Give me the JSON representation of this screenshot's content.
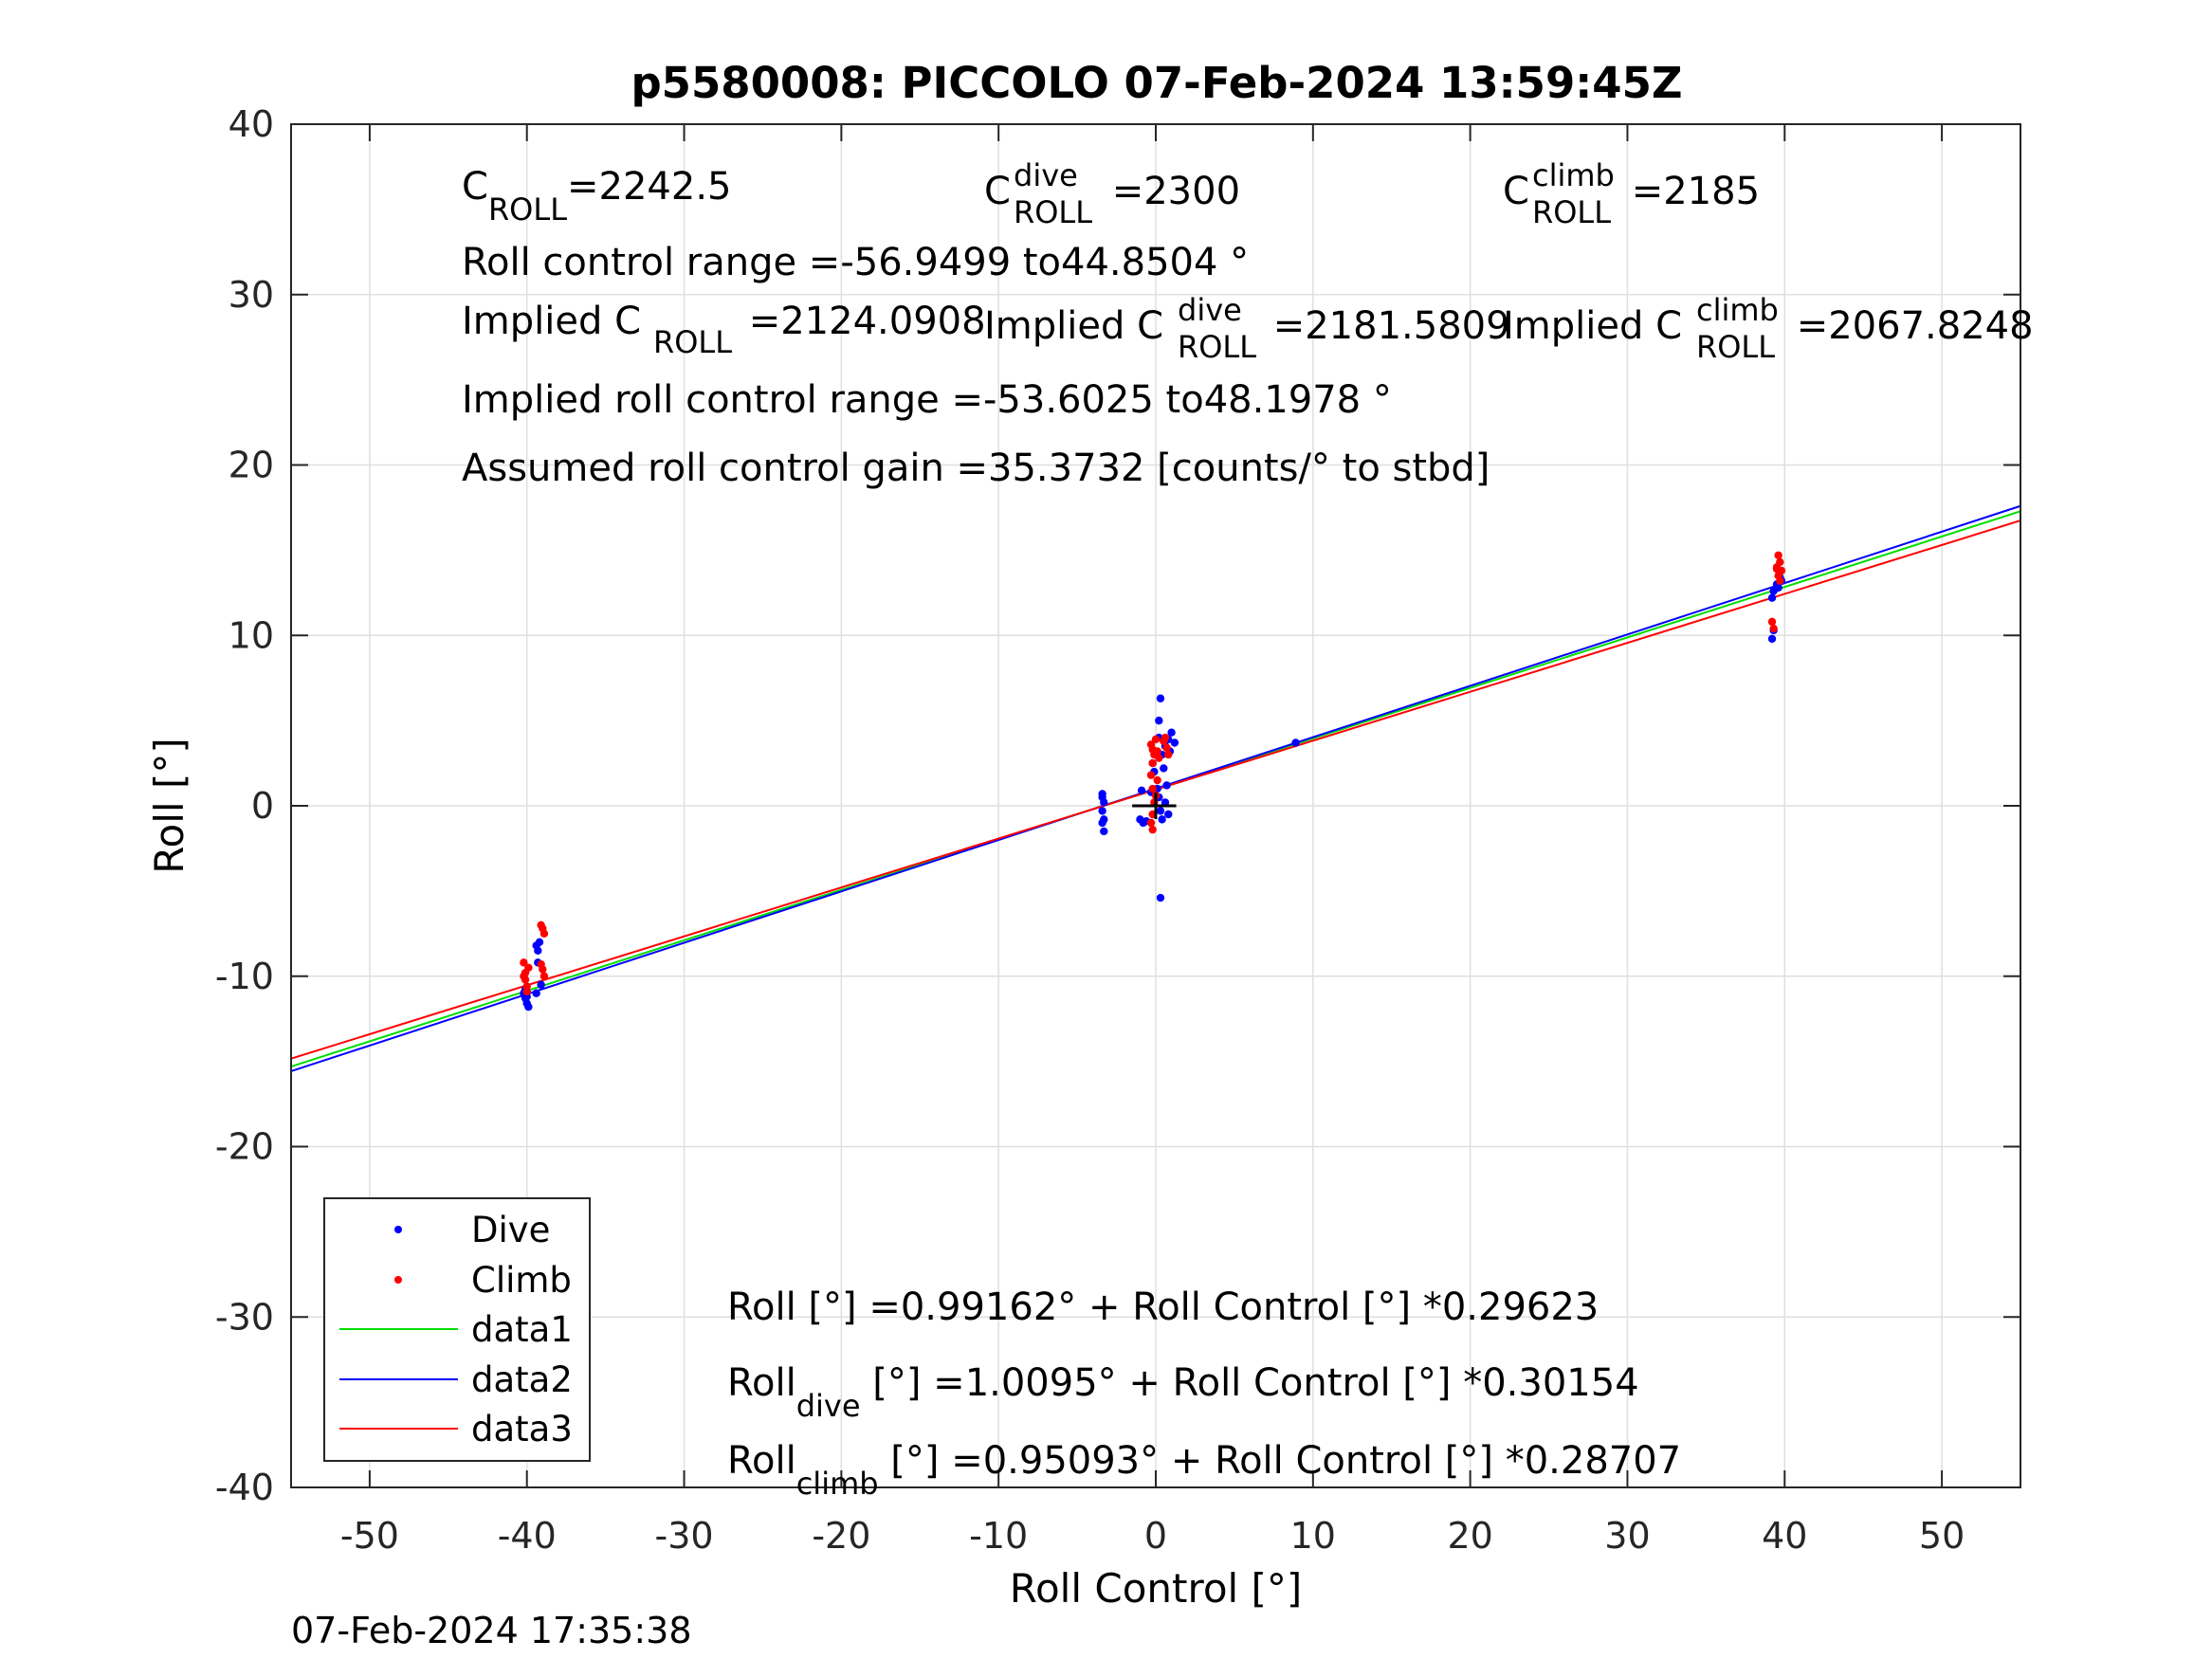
{
  "chart_data": {
    "type": "scatter",
    "title": "p5580008: PICCOLO 07-Feb-2024 13:59:45Z",
    "xlabel": "Roll Control [°]",
    "ylabel": "Roll [°]",
    "xlim": [
      -55,
      55
    ],
    "ylim": [
      -40,
      40
    ],
    "xticks": [
      -50,
      -40,
      -30,
      -20,
      -10,
      0,
      10,
      20,
      30,
      40,
      50
    ],
    "yticks": [
      -40,
      -30,
      -20,
      -10,
      0,
      10,
      20,
      30,
      40
    ],
    "grid": true,
    "legend_position": "bottom-left",
    "footer_timestamp": "07-Feb-2024 17:35:38",
    "colors": {
      "dive": "#0000ff",
      "climb": "#ff0000",
      "data1": "#00dd00",
      "data2": "#0000ff",
      "data3": "#ff0000",
      "origin_marker": "#000000"
    },
    "series": [
      {
        "name": "Dive",
        "kind": "points",
        "points": [
          [
            -40.2,
            -11.0
          ],
          [
            -40.1,
            -11.3
          ],
          [
            -40.0,
            -11.6
          ],
          [
            -39.9,
            -11.8
          ],
          [
            -40.0,
            -11.2
          ],
          [
            -40.1,
            -10.8
          ],
          [
            -39.4,
            -8.2
          ],
          [
            -39.3,
            -8.5
          ],
          [
            -39.2,
            -8.0
          ],
          [
            -39.3,
            -9.2
          ],
          [
            -39.1,
            -10.5
          ],
          [
            -39.4,
            -11.0
          ],
          [
            -3.4,
            0.5
          ],
          [
            -3.3,
            0.2
          ],
          [
            -3.4,
            -0.3
          ],
          [
            -3.3,
            -0.8
          ],
          [
            -3.4,
            -1.0
          ],
          [
            -3.3,
            -1.5
          ],
          [
            -3.4,
            0.7
          ],
          [
            -1.0,
            -0.8
          ],
          [
            -0.8,
            -1.0
          ],
          [
            -0.6,
            -0.9
          ],
          [
            -0.9,
            0.9
          ],
          [
            -0.3,
            0.8
          ],
          [
            -0.2,
            2.5
          ],
          [
            -0.1,
            2.0
          ],
          [
            0.1,
            1.0
          ],
          [
            0.2,
            0.5
          ],
          [
            0.3,
            -0.3
          ],
          [
            0.4,
            -0.8
          ],
          [
            0.2,
            4.0
          ],
          [
            0.3,
            6.3
          ],
          [
            0.2,
            5.0
          ],
          [
            0.4,
            3.0
          ],
          [
            0.3,
            -5.4
          ],
          [
            0.6,
            3.5
          ],
          [
            0.8,
            3.9
          ],
          [
            1.0,
            4.3
          ],
          [
            1.2,
            3.7
          ],
          [
            0.9,
            3.2
          ],
          [
            0.5,
            2.2
          ],
          [
            0.7,
            1.2
          ],
          [
            0.6,
            0.2
          ],
          [
            0.8,
            -0.5
          ],
          [
            8.9,
            3.7
          ],
          [
            39.2,
            12.2
          ],
          [
            39.3,
            12.6
          ],
          [
            39.5,
            13.0
          ],
          [
            39.7,
            13.4
          ],
          [
            39.8,
            13.2
          ],
          [
            39.6,
            12.8
          ],
          [
            39.2,
            9.8
          ],
          [
            39.3,
            10.3
          ]
        ]
      },
      {
        "name": "Climb",
        "kind": "points",
        "points": [
          [
            -40.1,
            -10.2
          ],
          [
            -40.0,
            -10.6
          ],
          [
            -40.2,
            -10.0
          ],
          [
            -39.9,
            -9.5
          ],
          [
            -40.1,
            -9.8
          ],
          [
            -40.0,
            -10.9
          ],
          [
            -40.2,
            -9.2
          ],
          [
            -39.0,
            -7.2
          ],
          [
            -38.9,
            -7.5
          ],
          [
            -39.1,
            -7.0
          ],
          [
            -39.0,
            -9.6
          ],
          [
            -38.9,
            -10.0
          ],
          [
            -39.1,
            -9.3
          ],
          [
            -0.3,
            3.6
          ],
          [
            -0.2,
            3.3
          ],
          [
            -0.1,
            3.0
          ],
          [
            -0.2,
            2.5
          ],
          [
            -0.3,
            1.8
          ],
          [
            -0.2,
            1.0
          ],
          [
            -0.1,
            0.2
          ],
          [
            -0.2,
            -0.5
          ],
          [
            -0.3,
            -1.0
          ],
          [
            -0.2,
            -1.4
          ],
          [
            0.0,
            3.9
          ],
          [
            0.1,
            3.2
          ],
          [
            0.2,
            2.8
          ],
          [
            0.1,
            1.5
          ],
          [
            0.0,
            0.6
          ],
          [
            0.5,
            3.8
          ],
          [
            0.7,
            3.4
          ],
          [
            0.6,
            4.0
          ],
          [
            0.8,
            3.0
          ],
          [
            39.6,
            14.7
          ],
          [
            39.7,
            14.3
          ],
          [
            39.5,
            14.0
          ],
          [
            39.8,
            13.8
          ],
          [
            39.6,
            13.5
          ],
          [
            39.7,
            13.2
          ],
          [
            39.5,
            13.9
          ],
          [
            39.2,
            10.8
          ],
          [
            39.3,
            10.4
          ]
        ]
      },
      {
        "name": "data1",
        "kind": "line",
        "intercept": 0.99162,
        "slope": 0.29623
      },
      {
        "name": "data2",
        "kind": "line",
        "intercept": 1.0095,
        "slope": 0.30154
      },
      {
        "name": "data3",
        "kind": "line",
        "intercept": 0.95093,
        "slope": 0.28707
      }
    ],
    "annotations": {
      "c_roll": {
        "base": "C",
        "sub": "ROLL",
        "value": "=2242.5"
      },
      "c_roll_dive": {
        "base": "C",
        "sup": "dive",
        "sub": "ROLL",
        "value": " =2300"
      },
      "c_roll_climb": {
        "base": "C",
        "sup": "climb",
        "sub": "ROLL",
        "value": " =2185"
      },
      "roll_control_range": "Roll control range =-56.9499 to44.8504 °",
      "implied_c_roll": {
        "prefix": "Implied C",
        "sub": "ROLL",
        "value": " =2124.0908"
      },
      "implied_c_roll_dive": {
        "prefix": "Implied C",
        "sup": "dive",
        "sub": "ROLL",
        "value": " =2181.5809"
      },
      "implied_c_roll_climb": {
        "prefix": "Implied C",
        "sup": "climb",
        "sub": "ROLL",
        "value": " =2067.8248"
      },
      "implied_range": "Implied roll control range =-53.6025 to48.1978 °",
      "gain": "Assumed roll control gain =35.3732 [counts/° to stbd]",
      "fit_all": "Roll [°] =0.99162° + Roll Control [°] *0.29623",
      "fit_dive": {
        "base": "Roll",
        "sub": "dive",
        "rest": " [°] =1.0095° + Roll Control [°] *0.30154"
      },
      "fit_climb": {
        "base": "Roll",
        "sub": "climb",
        "rest": " [°] =0.95093° + Roll Control [°] *0.28707"
      }
    }
  }
}
